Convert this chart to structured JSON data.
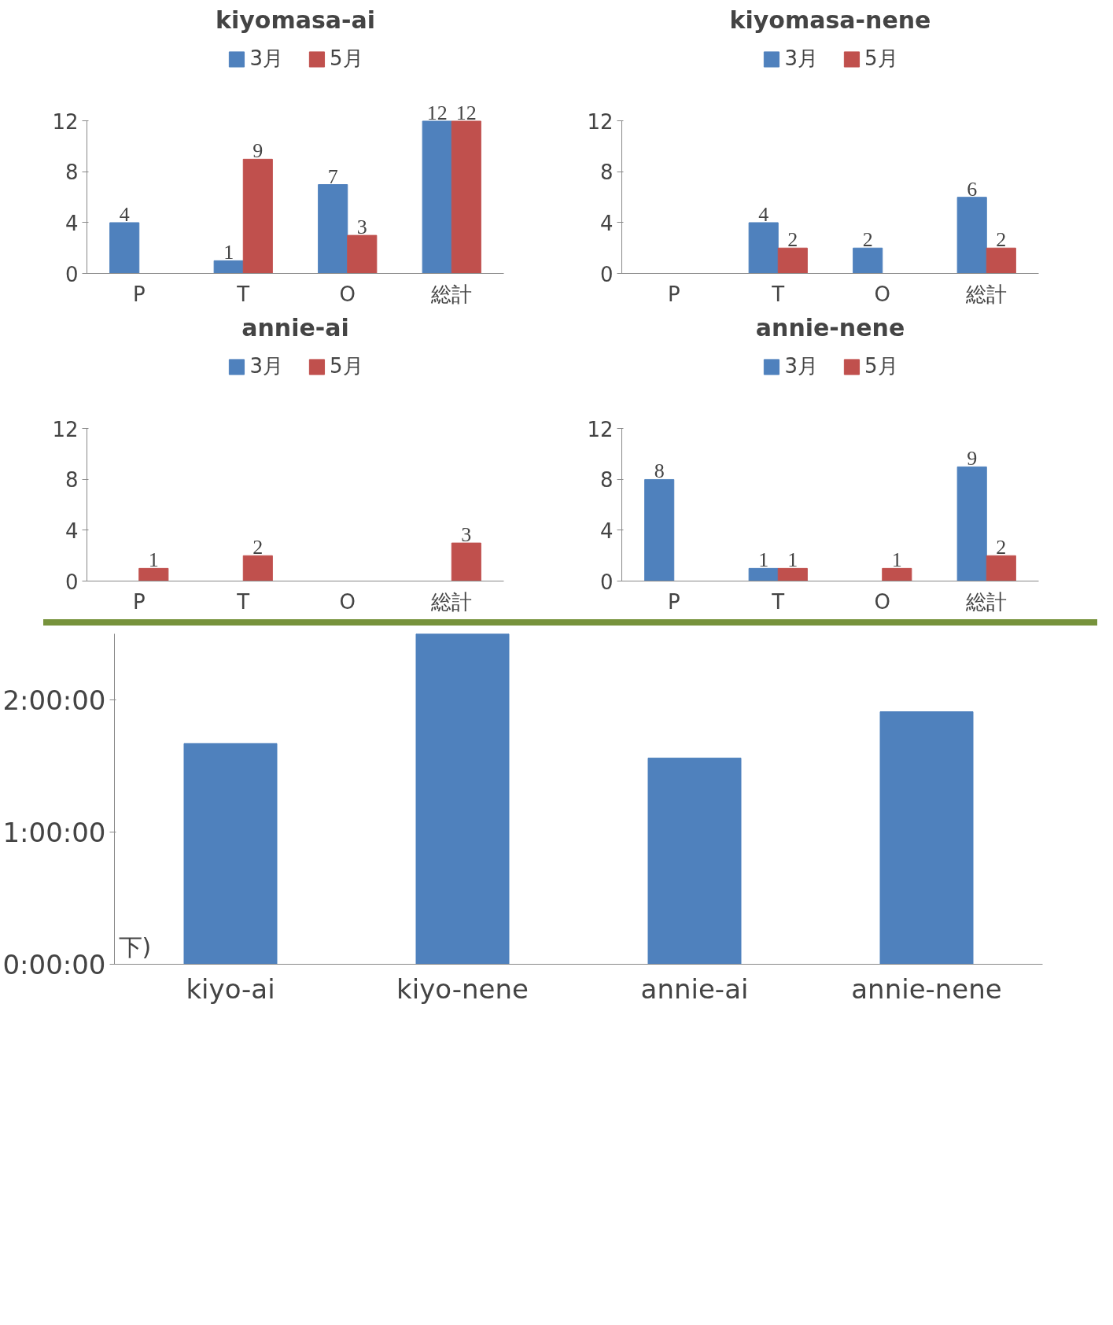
{
  "chart_data": [
    {
      "type": "bar",
      "title": "kiyomasa-ai",
      "categories": [
        "P",
        "T",
        "O",
        "総計"
      ],
      "series": [
        {
          "name": "3月",
          "color": "#4f81bd",
          "values": [
            4,
            1,
            7,
            12
          ]
        },
        {
          "name": "5月",
          "color": "#c0504d",
          "values": [
            null,
            9,
            3,
            12
          ]
        }
      ],
      "ylim": [
        0,
        12
      ],
      "yticks": [
        0,
        4,
        8,
        12
      ],
      "legend": "top",
      "data_labels": true,
      "grid": false
    },
    {
      "type": "bar",
      "title": "kiyomasa-nene",
      "categories": [
        "P",
        "T",
        "O",
        "総計"
      ],
      "series": [
        {
          "name": "3月",
          "color": "#4f81bd",
          "values": [
            null,
            4,
            2,
            6
          ]
        },
        {
          "name": "5月",
          "color": "#c0504d",
          "values": [
            null,
            2,
            null,
            2
          ]
        }
      ],
      "ylim": [
        0,
        12
      ],
      "yticks": [
        0,
        4,
        8,
        12
      ],
      "legend": "top",
      "data_labels": true,
      "grid": false
    },
    {
      "type": "bar",
      "title": "annie-ai",
      "categories": [
        "P",
        "T",
        "O",
        "総計"
      ],
      "series": [
        {
          "name": "3月",
          "color": "#4f81bd",
          "values": [
            null,
            null,
            null,
            null
          ]
        },
        {
          "name": "5月",
          "color": "#c0504d",
          "values": [
            1,
            2,
            null,
            3
          ]
        }
      ],
      "ylim": [
        0,
        12
      ],
      "yticks": [
        0,
        4,
        8,
        12
      ],
      "legend": "top",
      "data_labels": true,
      "grid": false
    },
    {
      "type": "bar",
      "title": "annie-nene",
      "categories": [
        "P",
        "T",
        "O",
        "総計"
      ],
      "series": [
        {
          "name": "3月",
          "color": "#4f81bd",
          "values": [
            8,
            1,
            null,
            9
          ]
        },
        {
          "name": "5月",
          "color": "#c0504d",
          "values": [
            null,
            1,
            1,
            2
          ]
        }
      ],
      "ylim": [
        0,
        12
      ],
      "yticks": [
        0,
        4,
        8,
        12
      ],
      "legend": "top",
      "data_labels": true,
      "grid": false
    },
    {
      "type": "bar",
      "categories": [
        "kiyo-ai",
        "kiyo-nene",
        "annie-ai",
        "annie-nene"
      ],
      "values": [
        1.67,
        2.5,
        1.56,
        1.91
      ],
      "color": "#4f81bd",
      "ylim": [
        0,
        2.5
      ],
      "yticks": [
        {
          "value": 0,
          "label": "0:00:00"
        },
        {
          "value": 1,
          "label": "1:00:00"
        },
        {
          "value": 2,
          "label": "2:00:00"
        }
      ],
      "grid": false,
      "annotations": [
        "下)"
      ]
    }
  ]
}
